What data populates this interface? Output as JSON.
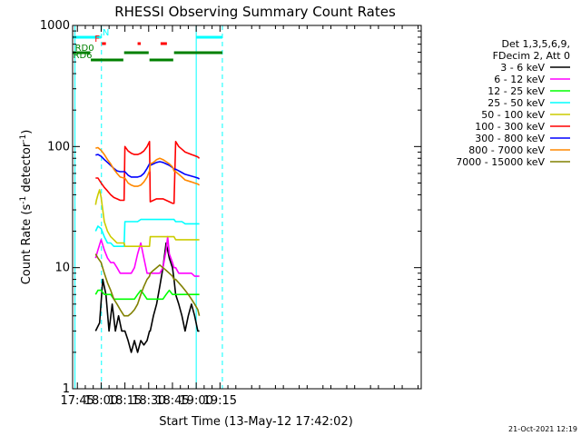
{
  "chart_data": {
    "type": "line",
    "title": "RHESSI Observing Summary Count Rates",
    "xlabel": "Start Time (13-May-12 17:42:02)",
    "ylabel": "Count Rate (s",
    "ylabel_sup1": "-1",
    "ylabel_mid": " detector",
    "ylabel_sup2": "-1",
    "ylabel_end": ")",
    "footer": "21-Oct-2021 12:19",
    "xlim_min": [
      1062,
      1282
    ],
    "ylim": [
      1,
      1000
    ],
    "y_scale": "log",
    "x_ticks": [
      {
        "min": 1065,
        "label": "17:45"
      },
      {
        "min": 1080,
        "label": "18:00"
      },
      {
        "min": 1095,
        "label": "18:15"
      },
      {
        "min": 1110,
        "label": "18:30"
      },
      {
        "min": 1125,
        "label": "18:45"
      },
      {
        "min": 1140,
        "label": "19:00"
      },
      {
        "min": 1155,
        "label": "19:15"
      }
    ],
    "y_ticks": [
      {
        "value": 1,
        "label": "1"
      },
      {
        "value": 10,
        "label": "10"
      },
      {
        "value": 100,
        "label": "100"
      },
      {
        "value": 1000,
        "label": "1000"
      }
    ],
    "legend_header": [
      "Det 1,3,5,6,9,",
      "FDecim 2, Att 0"
    ],
    "legend_position": "right",
    "series": [
      {
        "name": "3 - 6 keV",
        "color": "#000000",
        "x": [
          1076.5,
          1079,
          1081,
          1083,
          1085,
          1087,
          1089,
          1091,
          1093,
          1094.5,
          1095,
          1097,
          1099,
          1101,
          1103,
          1105,
          1107,
          1109,
          1110.5,
          1111,
          1113,
          1115,
          1117,
          1119,
          1121,
          1123,
          1125,
          1126,
          1127,
          1129,
          1131,
          1133,
          1135,
          1137,
          1139,
          1141,
          1142
        ],
        "y": [
          3,
          3.5,
          8,
          6,
          3,
          5,
          3,
          4,
          3,
          3,
          3,
          2.5,
          2,
          2.5,
          2,
          2.5,
          2.3,
          2.5,
          3,
          3,
          4,
          5,
          7,
          10,
          16,
          12,
          10,
          8,
          6,
          5,
          4,
          3,
          4,
          5,
          4,
          3,
          3
        ]
      },
      {
        "name": "6 - 12 keV",
        "color": "#ff00ff",
        "x": [
          1076.5,
          1078,
          1080,
          1082,
          1084,
          1086,
          1088,
          1090,
          1092,
          1094.5,
          1095,
          1097,
          1099,
          1101,
          1103,
          1105,
          1107,
          1109,
          1110.5,
          1111,
          1113,
          1115,
          1117,
          1119,
          1121,
          1122,
          1123,
          1125,
          1126,
          1127,
          1129,
          1131,
          1133,
          1135,
          1137,
          1139,
          1141,
          1142
        ],
        "y": [
          12,
          14,
          17,
          14,
          12,
          11,
          11,
          10,
          9,
          9,
          9,
          9,
          9,
          10,
          13,
          16,
          12,
          9,
          9,
          9,
          9,
          9,
          9,
          10,
          14,
          18,
          13,
          11,
          10,
          10,
          9,
          9,
          9,
          9,
          9,
          8.5,
          8.5,
          8.5
        ]
      },
      {
        "name": "12 - 25 keV",
        "color": "#00ff00",
        "x": [
          1076.5,
          1078,
          1080,
          1082,
          1084,
          1086,
          1088,
          1090,
          1092,
          1094.5,
          1095,
          1097,
          1099,
          1101,
          1103,
          1105,
          1107,
          1109,
          1110.5,
          1111,
          1113,
          1115,
          1117,
          1119,
          1121,
          1123,
          1125,
          1126,
          1127,
          1129,
          1131,
          1133,
          1135,
          1137,
          1139,
          1141,
          1142
        ],
        "y": [
          6,
          6.5,
          6.5,
          6,
          6,
          6,
          5.5,
          5.5,
          5.5,
          5.5,
          5.5,
          5.5,
          5.5,
          5.5,
          6,
          6.5,
          6,
          5.5,
          5.5,
          5.5,
          5.5,
          5.5,
          5.5,
          5.5,
          6,
          6.5,
          6,
          6,
          6,
          6,
          6,
          6,
          6,
          6,
          6,
          6,
          6
        ]
      },
      {
        "name": "25 - 50 keV",
        "color": "#00ffff",
        "x": [
          1076.5,
          1078,
          1080,
          1082,
          1084,
          1086,
          1088,
          1090,
          1092,
          1094.5,
          1095,
          1097,
          1099,
          1101,
          1103,
          1105,
          1107,
          1109,
          1110.5,
          1111,
          1113,
          1115,
          1117,
          1119,
          1121,
          1123,
          1125,
          1126,
          1127,
          1129,
          1131,
          1133,
          1135,
          1137,
          1139,
          1141,
          1142
        ],
        "y": [
          20,
          22,
          21,
          18,
          16,
          16,
          15,
          15,
          15,
          15,
          24,
          24,
          24,
          24,
          24,
          25,
          25,
          25,
          25,
          25,
          25,
          25,
          25,
          25,
          25,
          25,
          25,
          25,
          24,
          24,
          24,
          23,
          23,
          23,
          23,
          23,
          23
        ]
      },
      {
        "name": "50 - 100 keV",
        "color": "#cccc00",
        "x": [
          1076.5,
          1077,
          1078,
          1079,
          1080,
          1081,
          1082,
          1084,
          1086,
          1088,
          1090,
          1092,
          1094.5,
          1095,
          1097,
          1099,
          1101,
          1103,
          1105,
          1107,
          1109,
          1110.5,
          1111,
          1113,
          1115,
          1117,
          1119,
          1121,
          1123,
          1125,
          1126,
          1127,
          1129,
          1131,
          1133,
          1135,
          1137,
          1139,
          1141,
          1142
        ],
        "y": [
          33,
          36,
          40,
          44,
          38,
          30,
          24,
          20,
          18,
          17,
          16,
          16,
          16,
          15,
          15,
          15,
          15,
          15,
          15,
          15,
          15,
          15,
          18,
          18,
          18,
          18,
          18,
          18,
          18,
          18,
          18,
          17,
          17,
          17,
          17,
          17,
          17,
          17,
          17,
          17
        ]
      },
      {
        "name": "100 - 300 keV",
        "color": "#ff0000",
        "x": [
          1076.5,
          1078,
          1080,
          1082,
          1084,
          1086,
          1088,
          1090,
          1092,
          1094.5,
          1095,
          1097,
          1099,
          1101,
          1103,
          1105,
          1107,
          1109,
          1110.5,
          1111,
          1113,
          1115,
          1117,
          1119,
          1121,
          1123,
          1125,
          1126,
          1127,
          1129,
          1131,
          1133,
          1135,
          1137,
          1139,
          1141,
          1142
        ],
        "y": [
          55,
          55,
          50,
          46,
          43,
          40,
          38,
          37,
          36,
          36,
          100,
          92,
          88,
          86,
          86,
          88,
          92,
          100,
          110,
          35,
          36,
          37,
          37,
          37,
          36,
          35,
          34,
          34,
          110,
          100,
          95,
          90,
          88,
          86,
          84,
          82,
          80
        ]
      },
      {
        "name": "300 - 800 keV",
        "color": "#0000ff",
        "x": [
          1076.5,
          1078,
          1080,
          1082,
          1084,
          1086,
          1088,
          1090,
          1092,
          1094.5,
          1095,
          1097,
          1099,
          1101,
          1103,
          1105,
          1107,
          1109,
          1110.5,
          1111,
          1113,
          1115,
          1117,
          1119,
          1121,
          1123,
          1125,
          1126,
          1127,
          1129,
          1131,
          1133,
          1135,
          1137,
          1139,
          1141,
          1142
        ],
        "y": [
          85,
          86,
          83,
          78,
          74,
          70,
          66,
          63,
          62,
          62,
          62,
          58,
          56,
          56,
          56,
          57,
          60,
          66,
          72,
          70,
          72,
          74,
          75,
          74,
          72,
          70,
          67,
          65,
          65,
          63,
          61,
          59,
          58,
          57,
          56,
          55,
          54
        ]
      },
      {
        "name": "800 - 7000 keV",
        "color": "#ff8800",
        "x": [
          1076.5,
          1078,
          1080,
          1082,
          1084,
          1086,
          1088,
          1090,
          1092,
          1094.5,
          1095,
          1097,
          1099,
          1101,
          1103,
          1105,
          1107,
          1109,
          1110.5,
          1111,
          1113,
          1115,
          1117,
          1119,
          1121,
          1123,
          1125,
          1126,
          1127,
          1129,
          1131,
          1133,
          1135,
          1137,
          1139,
          1141,
          1142
        ],
        "y": [
          97,
          98,
          93,
          86,
          78,
          72,
          65,
          60,
          56,
          55,
          55,
          50,
          48,
          47,
          47,
          48,
          51,
          56,
          63,
          72,
          74,
          78,
          80,
          78,
          75,
          72,
          68,
          63,
          62,
          59,
          56,
          53,
          52,
          51,
          50,
          49,
          48
        ]
      },
      {
        "name": "7000 - 15000 keV",
        "color": "#808000",
        "x": [
          1076.5,
          1078,
          1080,
          1082,
          1084,
          1086,
          1088,
          1090,
          1092,
          1094.5,
          1095,
          1097,
          1099,
          1101,
          1103,
          1105,
          1107,
          1109,
          1110.5,
          1111,
          1113,
          1115,
          1117,
          1119,
          1121,
          1123,
          1125,
          1126,
          1127,
          1129,
          1131,
          1133,
          1135,
          1137,
          1139,
          1141,
          1142
        ],
        "y": [
          13,
          12,
          11,
          9,
          7.5,
          6.5,
          5.5,
          5,
          4.5,
          4,
          4,
          4,
          4.2,
          4.5,
          5,
          6,
          7,
          8,
          8.5,
          9,
          9.5,
          10,
          10.5,
          10,
          9.5,
          9,
          8.5,
          8,
          8,
          7.5,
          7,
          6.5,
          6,
          5.5,
          5,
          4.5,
          4
        ]
      }
    ],
    "orbit_bars": [
      {
        "label": "N",
        "color": "#00ffff",
        "segments": [
          [
            1062,
            1080
          ],
          [
            1140,
            1156.5
          ]
        ]
      },
      {
        "label": "F",
        "color": "#ff0000",
        "segments": [
          [
            1080.5,
            1083
          ],
          [
            1103,
            1105
          ],
          [
            1117.5,
            1121.5
          ]
        ]
      },
      {
        "label": "RD0",
        "color": "#008000",
        "segments": [
          [
            1062,
            1073
          ],
          [
            1094.5,
            1110
          ],
          [
            1126,
            1156.5
          ]
        ]
      },
      {
        "label": "RD6",
        "color": "#008000",
        "segments": [
          [
            1073.5,
            1094
          ],
          [
            1110.5,
            1125.5
          ]
        ]
      }
    ],
    "vertical_lines": [
      {
        "min": 1063.5,
        "color": "#00ffff",
        "style": "solid"
      },
      {
        "min": 1080.2,
        "color": "#00ffff",
        "style": "dashed"
      },
      {
        "min": 1140,
        "color": "#00ffff",
        "style": "solid"
      },
      {
        "min": 1156.5,
        "color": "#00ffff",
        "style": "dashed"
      }
    ]
  }
}
